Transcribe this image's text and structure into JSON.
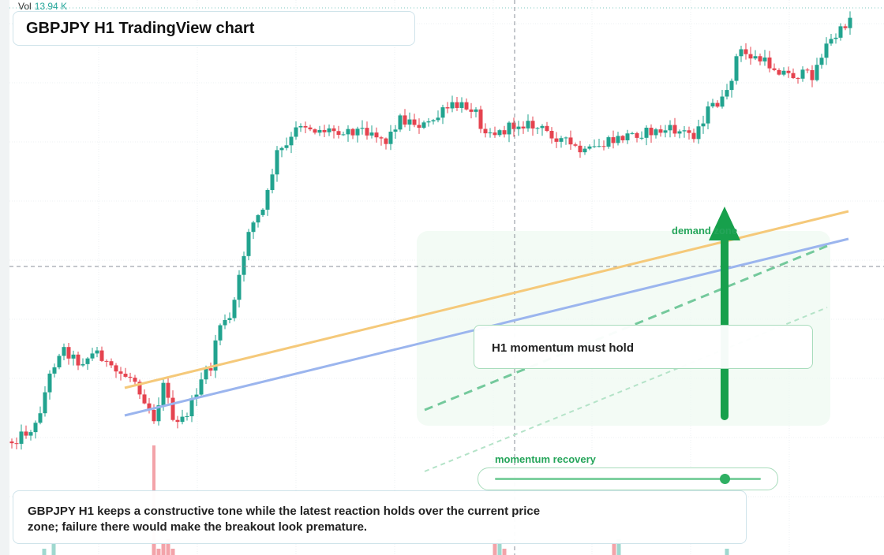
{
  "header": {
    "title": "GBPJPY H1 TradingView chart",
    "volume_label": "Vol",
    "volume_value": "13.94 K"
  },
  "annotations": {
    "zone": "demand zone",
    "note": "H1 momentum must hold",
    "slider": "momentum recovery"
  },
  "caption": "GBPJPY H1 keeps a constructive tone while the latest reaction holds over the current price zone; failure there would make the breakout look premature."
}
